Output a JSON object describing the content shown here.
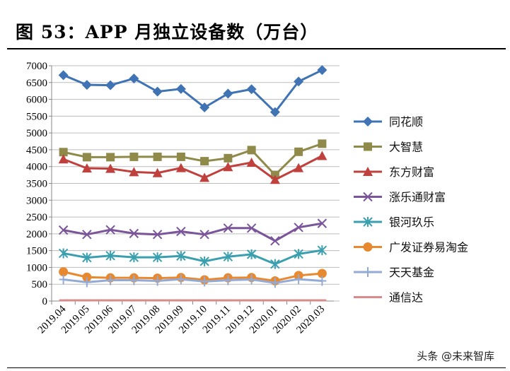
{
  "title": "图 53：APP 月独立设备数（万台）",
  "watermark": "头条 @未来智库",
  "chart_data": {
    "type": "line",
    "title": "",
    "xlabel": "",
    "ylabel": "",
    "ylim": [
      0,
      7000
    ],
    "yticks": [
      0,
      500,
      1000,
      1500,
      2000,
      2500,
      3000,
      3500,
      4000,
      4500,
      5000,
      5500,
      6000,
      6500,
      7000
    ],
    "grid": true,
    "legend": "right",
    "categories": [
      "2019.04",
      "2019.05",
      "2019.06",
      "2019.07",
      "2019.08",
      "2019.09",
      "2019.10",
      "2019.11",
      "2019.12",
      "2020.01",
      "2020.02",
      "2020.03"
    ],
    "series": [
      {
        "name": "同花顺",
        "color": "#3f73b3",
        "marker": "diamond",
        "values": [
          6720,
          6430,
          6420,
          6620,
          6230,
          6310,
          5760,
          6170,
          6300,
          5620,
          6530,
          6870
        ]
      },
      {
        "name": "大智慧",
        "color": "#8f8a4a",
        "marker": "square",
        "values": [
          4430,
          4280,
          4280,
          4290,
          4290,
          4290,
          4160,
          4250,
          4490,
          3750,
          4440,
          4680
        ]
      },
      {
        "name": "东方财富",
        "color": "#c0403d",
        "marker": "triangle",
        "values": [
          4220,
          3950,
          3940,
          3840,
          3810,
          3960,
          3670,
          3990,
          4120,
          3610,
          3960,
          4320
        ]
      },
      {
        "name": "涨乐通财富",
        "color": "#7a559a",
        "marker": "x",
        "values": [
          2110,
          1980,
          2120,
          2010,
          1980,
          2070,
          1980,
          2170,
          2170,
          1790,
          2190,
          2310
        ]
      },
      {
        "name": "银河玖乐",
        "color": "#3a9fae",
        "marker": "asterisk",
        "values": [
          1420,
          1290,
          1350,
          1300,
          1300,
          1340,
          1180,
          1320,
          1390,
          1100,
          1400,
          1510
        ]
      },
      {
        "name": "广发证券易淘金",
        "color": "#e8892f",
        "marker": "circle",
        "values": [
          870,
          710,
          690,
          690,
          680,
          700,
          630,
          690,
          700,
          600,
          760,
          820
        ]
      },
      {
        "name": "天天基金",
        "color": "#93aad4",
        "marker": "plus",
        "values": [
          640,
          560,
          620,
          620,
          600,
          650,
          580,
          620,
          640,
          540,
          650,
          600
        ]
      },
      {
        "name": "通信达",
        "color": "#d98a8a",
        "marker": "dash",
        "values": [
          20,
          20,
          20,
          20,
          20,
          20,
          20,
          20,
          20,
          20,
          20,
          20
        ]
      }
    ]
  }
}
